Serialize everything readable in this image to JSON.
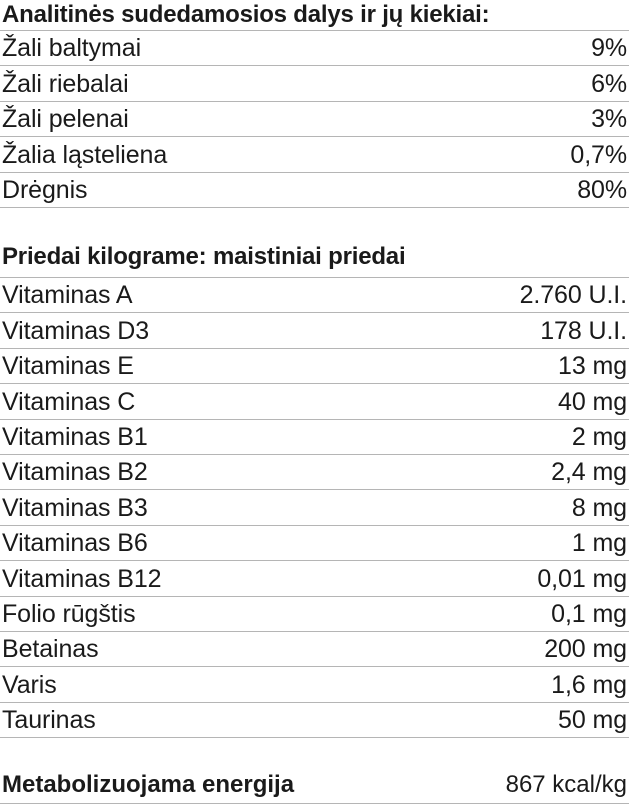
{
  "analytical": {
    "title": "Analitinės sudedamosios dalys ir jų kiekiai:",
    "rows": [
      {
        "label": "Žali baltymai",
        "value": "9%"
      },
      {
        "label": "Žali riebalai",
        "value": "6%"
      },
      {
        "label": "Žali pelenai",
        "value": "3%"
      },
      {
        "label": "Žalia ląsteliena",
        "value": "0,7%"
      },
      {
        "label": "Drėgnis",
        "value": "80%"
      }
    ]
  },
  "additives": {
    "title": "Priedai kilograme: maistiniai priedai",
    "rows": [
      {
        "label": "Vitaminas A",
        "value": "2.760 U.I."
      },
      {
        "label": "Vitaminas D3",
        "value": "178 U.I."
      },
      {
        "label": "Vitaminas E",
        "value": "13 mg"
      },
      {
        "label": "Vitaminas C",
        "value": "40 mg"
      },
      {
        "label": "Vitaminas B1",
        "value": "2 mg"
      },
      {
        "label": "Vitaminas B2",
        "value": "2,4 mg"
      },
      {
        "label": "Vitaminas B3",
        "value": "8 mg"
      },
      {
        "label": "Vitaminas B6",
        "value": "1 mg"
      },
      {
        "label": "Vitaminas B12",
        "value": "0,01 mg"
      },
      {
        "label": "Folio rūgštis",
        "value": "0,1 mg"
      },
      {
        "label": "Betainas",
        "value": "200 mg"
      },
      {
        "label": "Varis",
        "value": "1,6 mg"
      },
      {
        "label": "Taurinas",
        "value": "50 mg"
      }
    ]
  },
  "energy": {
    "label": "Metabolizuojama energija",
    "value": "867 kcal/kg"
  }
}
